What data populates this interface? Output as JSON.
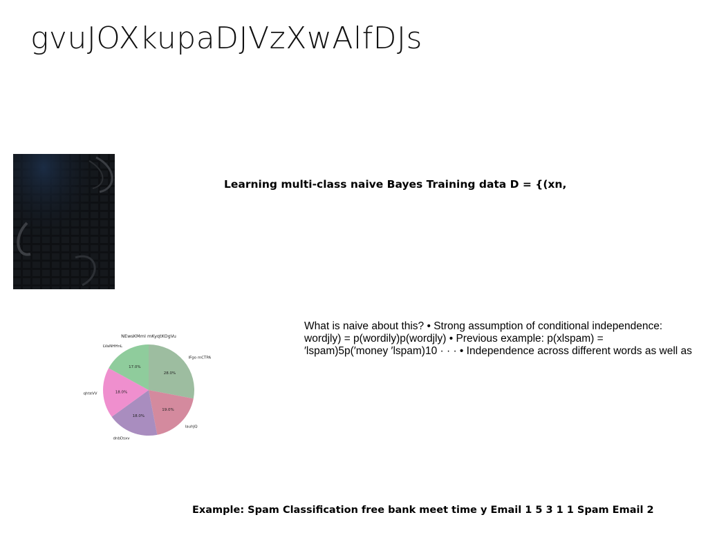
{
  "slide": {
    "title": "gvuJOXkupaDJVzXwAlfDJs",
    "heading": "Learning multi-class naive Bayes Training data D = {(xn,",
    "paragraph_lines": [
      "What is naive about this? • Strong assumption of conditional independence:",
      "wordjly) = p(wordily)p(wordjly) • Previous example: p(xlspam) =",
      "′lspam)5p(′money ′lspam)10 · · · • Independence across different words as well as"
    ],
    "footer": "Example: Spam Classification free bank meet time y Email 1 5 3 1 1 Spam Email 2"
  },
  "chart_data": {
    "type": "pie",
    "title": "NEwsKMmI mKyqtKOgVu",
    "slices": [
      {
        "label": "IFgo mCTPA",
        "value": 28.0,
        "text": "28.0%",
        "color": "#9dbda0"
      },
      {
        "label": "lauhJQ",
        "value": 19.0,
        "text": "19.0%",
        "color": "#d48a9e"
      },
      {
        "label": "dnbDsxv",
        "value": 18.0,
        "text": "18.0%",
        "color": "#a98dbf"
      },
      {
        "label": "qhteVV",
        "value": 18.0,
        "text": "18.0%",
        "color": "#ef8fce"
      },
      {
        "label": "LVaNHHnL",
        "value": 17.0,
        "text": "17.0%",
        "color": "#8fcc9c"
      }
    ],
    "start_angle_deg": 90,
    "direction": "clockwise"
  }
}
